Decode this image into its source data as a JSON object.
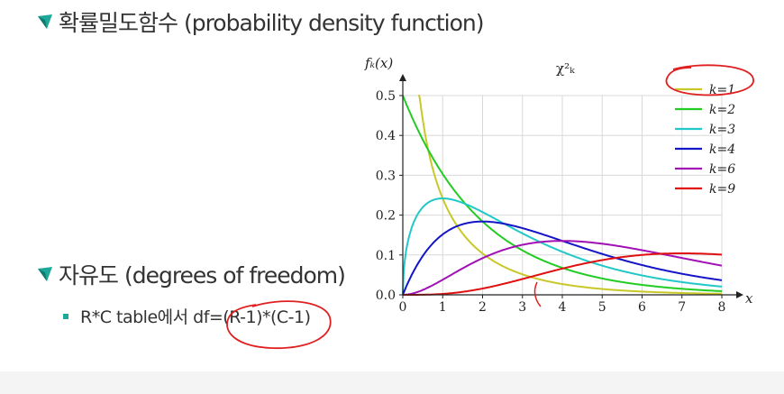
{
  "heading1": "확률밀도함수 (probability density function)",
  "heading2": "자유도 (degrees of freedom)",
  "subitem": "R*C table에서 df=(R-1)*(C-1)",
  "colors": {
    "accent": "#1ea89a",
    "accent_dark": "#127a6e",
    "annotation": "#e02020"
  },
  "chart_data": {
    "type": "line",
    "title": "χ²ₖ",
    "ylabel": "fₖ(x)",
    "xlabel": "x",
    "xlim": [
      0,
      8
    ],
    "ylim": [
      0,
      0.5
    ],
    "xticks": [
      "0",
      "1",
      "2",
      "3",
      "4",
      "5",
      "6",
      "7",
      "8"
    ],
    "yticks": [
      "0.0",
      "0.1",
      "0.2",
      "0.3",
      "0.4",
      "0.5"
    ],
    "legend_position": "top-right",
    "series": [
      {
        "name": "k=1",
        "k": 1,
        "color": "#c8c828"
      },
      {
        "name": "k=2",
        "k": 2,
        "color": "#22cc22"
      },
      {
        "name": "k=3",
        "k": 3,
        "color": "#22c8c8"
      },
      {
        "name": "k=4",
        "k": 4,
        "color": "#1515c8"
      },
      {
        "name": "k=6",
        "k": 6,
        "color": "#a010b4"
      },
      {
        "name": "k=9",
        "k": 9,
        "color": "#e01010"
      }
    ]
  }
}
